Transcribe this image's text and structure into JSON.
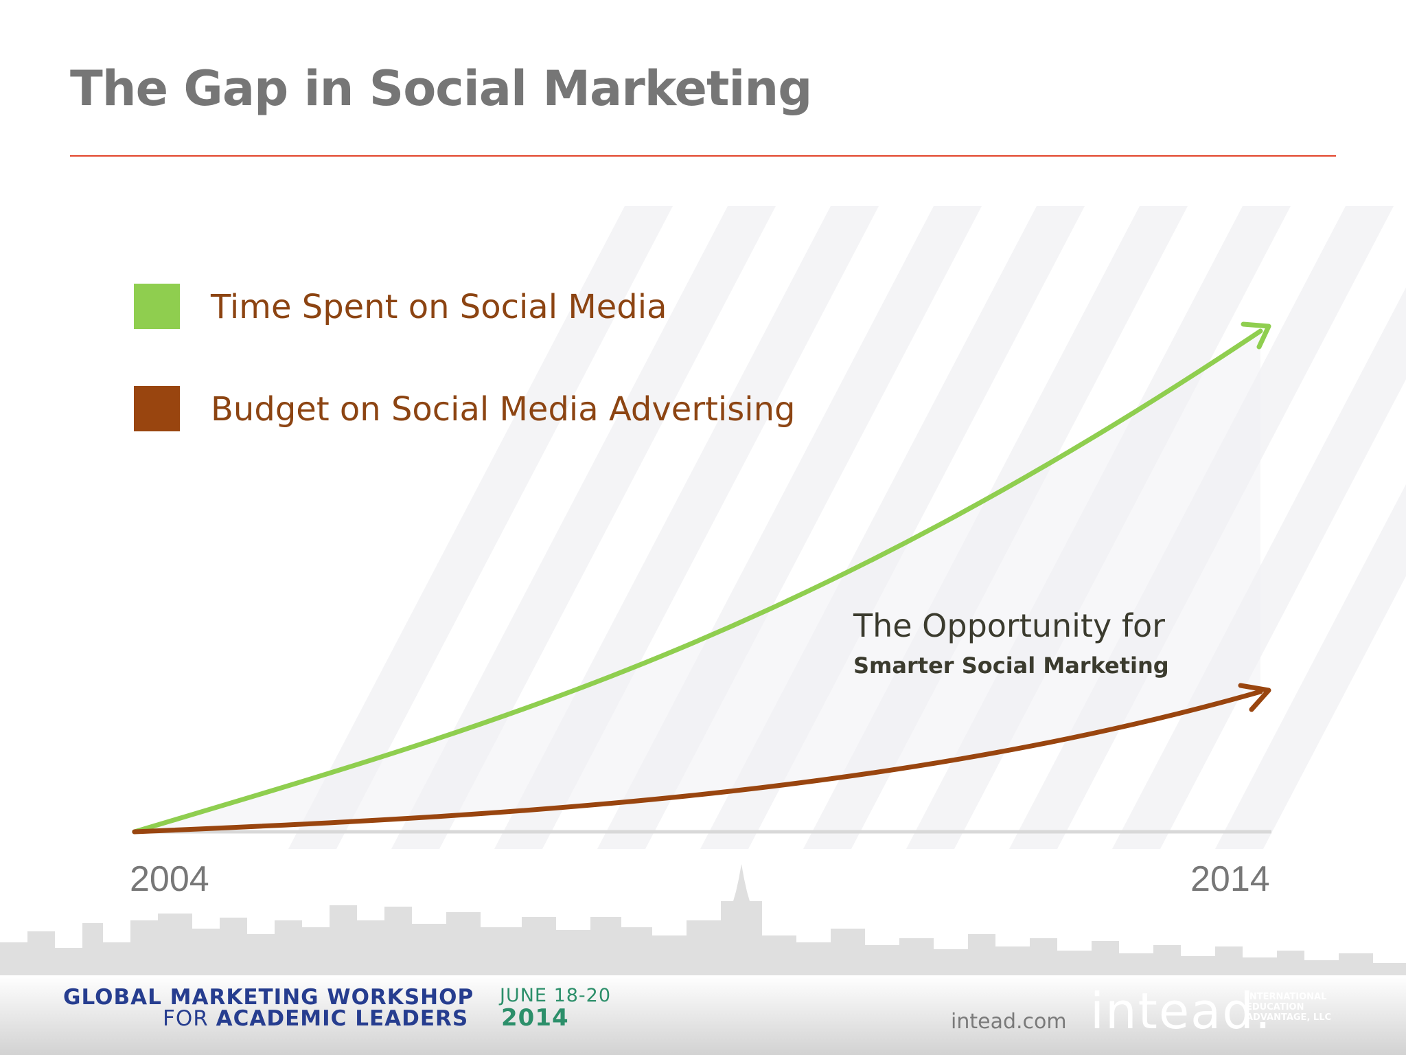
{
  "header": {
    "title": "The Gap in Social Marketing"
  },
  "colors": {
    "accent_rule": "#e2452b",
    "green": "#8fce4f",
    "brown": "#99450f",
    "axis": "#d8d8d8"
  },
  "chart_data": {
    "type": "line",
    "x": [
      2004,
      2014
    ],
    "series": [
      {
        "name": "Time Spent on Social Media",
        "color": "#8fce4f",
        "trend": "rising exponentially"
      },
      {
        "name": "Budget on Social Media Advertising",
        "color": "#99450f",
        "trend": "rising slowly"
      }
    ],
    "xticks": [
      "2004",
      "2014"
    ],
    "annotation": {
      "line1": "The Opportunity for",
      "line2": "Smarter Social Marketing"
    },
    "legend_position": "top-left",
    "grid": false
  },
  "footer": {
    "event_line1": "GLOBAL MARKETING WORKSHOP",
    "event_line2_prefix": "FOR",
    "event_line2_bold": "ACADEMIC LEADERS",
    "event_date": "JUNE 18-20",
    "event_year": "2014",
    "site": "intead.com",
    "brand": "intead.",
    "brand_sub": [
      "INTERNATIONAL",
      "EDUCATION",
      "ADVANTAGE, LLC"
    ]
  }
}
